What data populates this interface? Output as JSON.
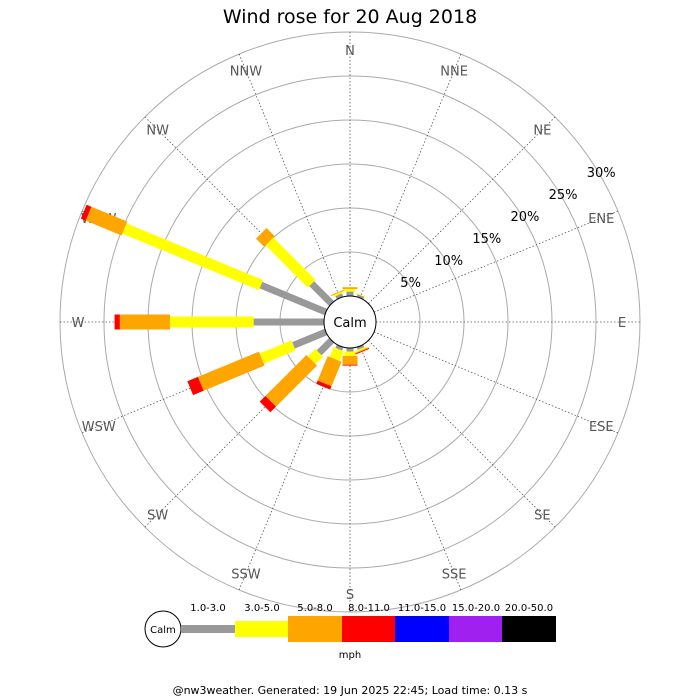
{
  "title": "Wind rose for 20 Aug 2018",
  "footer": "@nw3weather. Generated: 19 Jun 2025 22:45; Load time: 0.13 s",
  "chart_data": {
    "type": "wind-rose",
    "center_label": "Calm",
    "directions": [
      "N",
      "NNE",
      "NE",
      "ENE",
      "E",
      "ESE",
      "SE",
      "SSE",
      "S",
      "SSW",
      "SW",
      "WSW",
      "W",
      "WNW",
      "NW",
      "NNW"
    ],
    "ring_values": [
      5,
      10,
      15,
      20,
      25,
      30
    ],
    "ring_labels": [
      "5%",
      "10%",
      "15%",
      "20%",
      "25%",
      "30%"
    ],
    "max_percent": 30,
    "unit_label": "mph",
    "speed_bins": [
      {
        "label": "1.0-3.0",
        "color": "#999999"
      },
      {
        "label": "3.0-5.0",
        "color": "#ffff00"
      },
      {
        "label": "5.0-8.0",
        "color": "#ffa500"
      },
      {
        "label": "8.0-11.0",
        "color": "#ff0000"
      },
      {
        "label": "11.0-15.0",
        "color": "#0000ff"
      },
      {
        "label": "15.0-20.0",
        "color": "#a020f0"
      },
      {
        "label": "20.0-50.0",
        "color": "#000000"
      }
    ],
    "sectors": [
      {
        "direction": "N",
        "cumulative": [
          0.5,
          0.8,
          1.0,
          1.0,
          1.0,
          1.0,
          1.0
        ]
      },
      {
        "direction": "NNE",
        "cumulative": [
          0.3,
          0.4,
          0.4,
          0.4,
          0.4,
          0.4,
          0.4
        ]
      },
      {
        "direction": "NE",
        "cumulative": [
          0,
          0,
          0,
          0,
          0,
          0,
          0
        ]
      },
      {
        "direction": "ENE",
        "cumulative": [
          0,
          0,
          0,
          0,
          0,
          0,
          0
        ]
      },
      {
        "direction": "E",
        "cumulative": [
          0,
          0,
          0,
          0,
          0,
          0,
          0
        ]
      },
      {
        "direction": "ESE",
        "cumulative": [
          0,
          0,
          0,
          0,
          0,
          0,
          0
        ]
      },
      {
        "direction": "SE",
        "cumulative": [
          0,
          0,
          0,
          0,
          0,
          0,
          0
        ]
      },
      {
        "direction": "SSE",
        "cumulative": [
          0.3,
          0.5,
          0.6,
          0.7,
          0.7,
          0.7,
          0.7
        ]
      },
      {
        "direction": "S",
        "cumulative": [
          0.4,
          0.9,
          1.9,
          2.0,
          2.0,
          2.0,
          2.0
        ]
      },
      {
        "direction": "SSW",
        "cumulative": [
          0.4,
          1.6,
          4.6,
          5.0,
          5.0,
          5.0,
          5.0
        ]
      },
      {
        "direction": "SW",
        "cumulative": [
          2.0,
          3.2,
          9.8,
          10.7,
          10.7,
          10.7,
          10.7
        ]
      },
      {
        "direction": "WSW",
        "cumulative": [
          4.0,
          7.9,
          15.4,
          16.7,
          16.7,
          16.7,
          16.7
        ]
      },
      {
        "direction": "W",
        "cumulative": [
          8.0,
          17.5,
          23.2,
          23.8,
          23.8,
          23.8,
          23.8
        ]
      },
      {
        "direction": "WNW",
        "cumulative": [
          8.0,
          24.8,
          29.2,
          29.8,
          29.8,
          29.8,
          29.8
        ]
      },
      {
        "direction": "NW",
        "cumulative": [
          3.2,
          10.0,
          11.3,
          11.3,
          11.3,
          11.3,
          11.3
        ]
      },
      {
        "direction": "NNW",
        "cumulative": [
          0.4,
          0.6,
          0.7,
          0.7,
          0.7,
          0.7,
          0.7
        ]
      }
    ]
  }
}
